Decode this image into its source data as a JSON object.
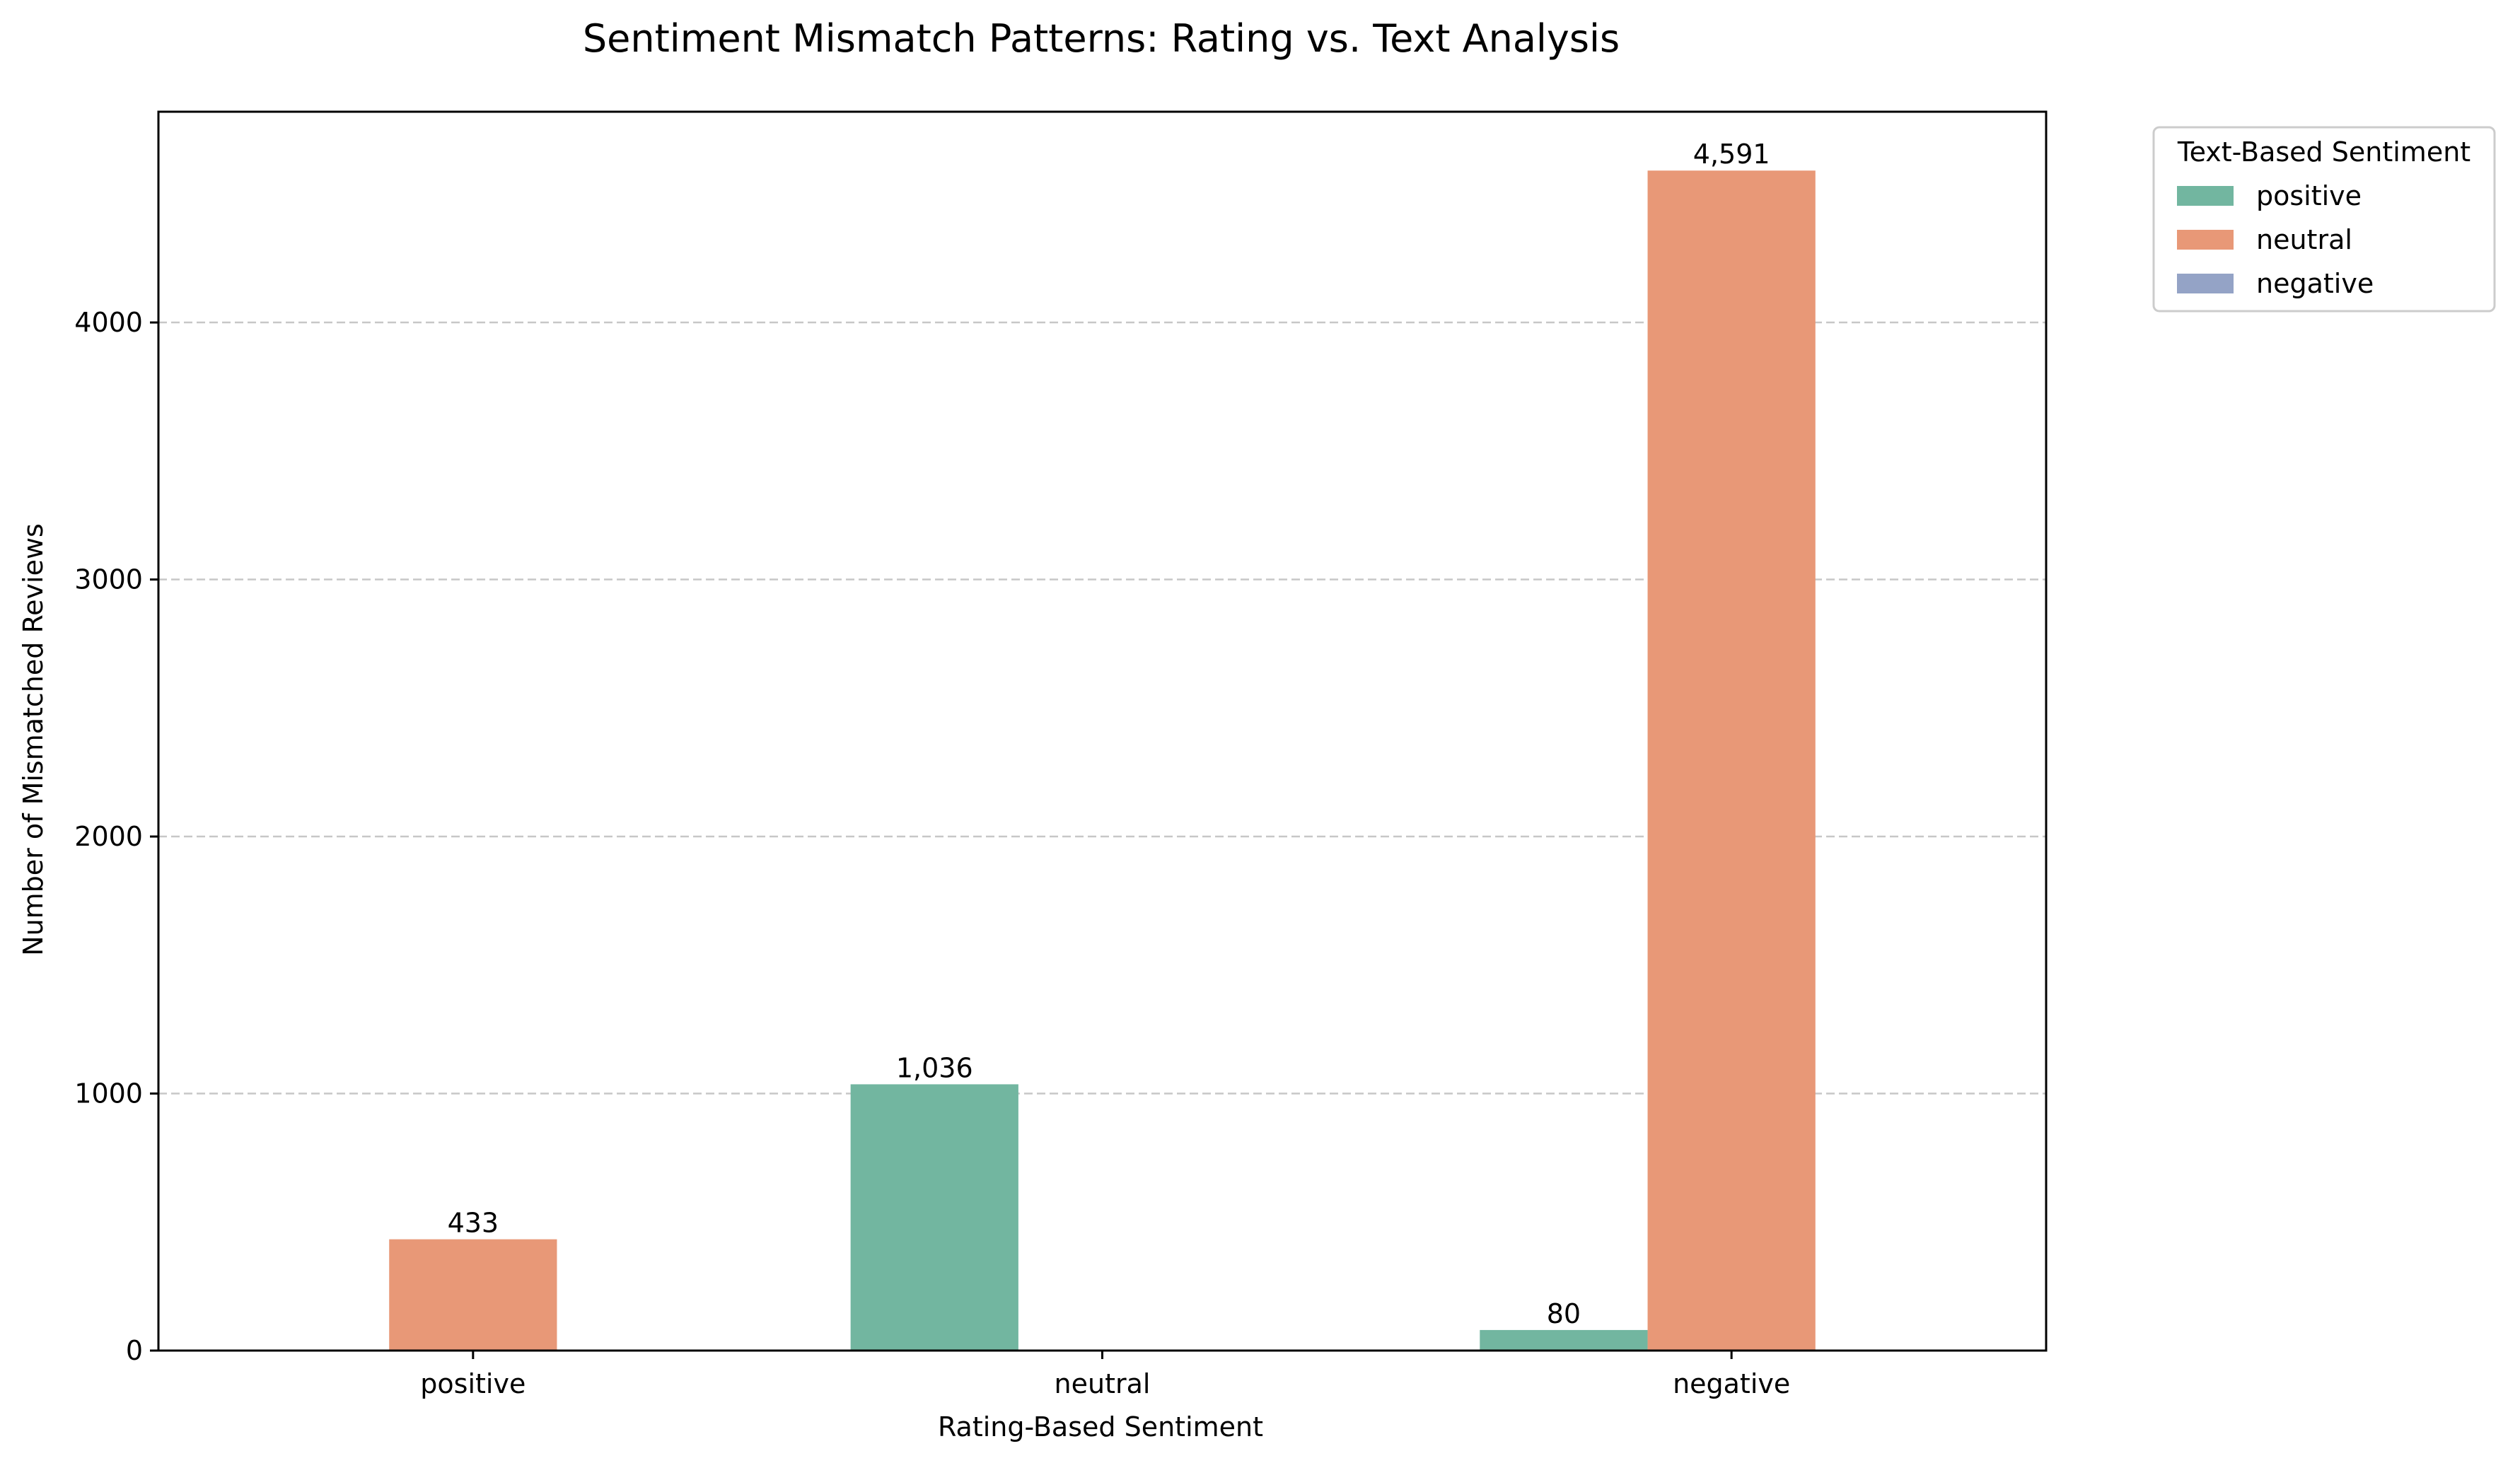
{
  "chart_data": {
    "type": "bar",
    "title": "Sentiment Mismatch Patterns: Rating vs. Text Analysis",
    "xlabel": "Rating-Based Sentiment",
    "ylabel": "Number of Mismatched Reviews",
    "categories": [
      "positive",
      "neutral",
      "negative"
    ],
    "series": [
      {
        "name": "positive",
        "color": "#72b6a0",
        "values": [
          0,
          1036,
          80
        ]
      },
      {
        "name": "neutral",
        "color": "#e89877",
        "values": [
          433,
          0,
          4591
        ]
      },
      {
        "name": "negative",
        "color": "#94a3c6",
        "values": [
          0,
          0,
          0
        ]
      }
    ],
    "bar_labels": [
      {
        "category": "positive",
        "series": "neutral",
        "text": "433"
      },
      {
        "category": "neutral",
        "series": "positive",
        "text": "1,036"
      },
      {
        "category": "negative",
        "series": "positive",
        "text": "80"
      },
      {
        "category": "negative",
        "series": "neutral",
        "text": "4,591"
      }
    ],
    "yticks": [
      0,
      1000,
      2000,
      3000,
      4000
    ],
    "ytick_labels": [
      "0",
      "1000",
      "2000",
      "3000",
      "4000"
    ],
    "ylim": [
      0,
      4820
    ],
    "grid": "y-dashed",
    "legend": {
      "title": "Text-Based Sentiment",
      "placement": "outside-top-right"
    }
  }
}
